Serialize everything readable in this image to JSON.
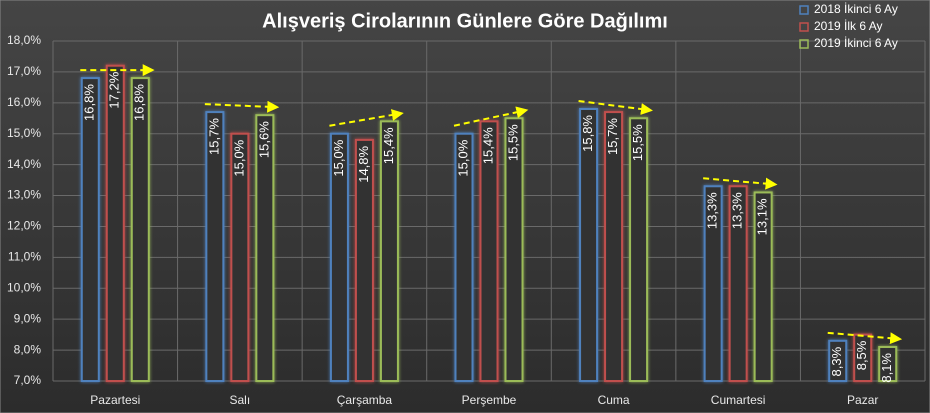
{
  "chart_data": {
    "type": "bar",
    "title": "Alışveriş Cirolarının Günlere Göre Dağılımı",
    "categories": [
      "Pazartesi",
      "Salı",
      "Çarşamba",
      "Perşembe",
      "Cuma",
      "Cumartesi",
      "Pazar"
    ],
    "series": [
      {
        "name": "2018 İkinci 6 Ay",
        "color": "#4f81bd",
        "values": [
          16.8,
          15.7,
          15.0,
          15.0,
          15.8,
          13.3,
          8.3
        ],
        "value_labels": [
          "16,8%",
          "15,7%",
          "15,0%",
          "15,0%",
          "15,8%",
          "13,3%",
          "8,3%"
        ]
      },
      {
        "name": "2019 İlk 6 Ay",
        "color": "#c0504d",
        "values": [
          17.2,
          15.0,
          14.8,
          15.4,
          15.7,
          13.3,
          8.5
        ],
        "value_labels": [
          "17,2%",
          "15,0%",
          "14,8%",
          "15,4%",
          "15,7%",
          "13,3%",
          "8,5%"
        ]
      },
      {
        "name": "2019 İkinci 6 Ay",
        "color": "#9bbb59",
        "values": [
          16.8,
          15.6,
          15.4,
          15.5,
          15.5,
          13.1,
          8.1
        ],
        "value_labels": [
          "16,8%",
          "15,6%",
          "15,4%",
          "15,5%",
          "15,5%",
          "13,1%",
          "8,1%"
        ]
      }
    ],
    "ylim": [
      7,
      18
    ],
    "yticks": [
      {
        "value": 7,
        "label": "7,0%"
      },
      {
        "value": 8,
        "label": "8,0%"
      },
      {
        "value": 9,
        "label": "9,0%"
      },
      {
        "value": 10,
        "label": "10,0%"
      },
      {
        "value": 11,
        "label": "11,0%"
      },
      {
        "value": 12,
        "label": "12,0%"
      },
      {
        "value": 13,
        "label": "13,0%"
      },
      {
        "value": 14,
        "label": "14,0%"
      },
      {
        "value": 15,
        "label": "15,0%"
      },
      {
        "value": 16,
        "label": "16,0%"
      },
      {
        "value": 17,
        "label": "17,0%"
      },
      {
        "value": 18,
        "label": "18,0%"
      }
    ],
    "grid": true,
    "legend": "top-right"
  }
}
